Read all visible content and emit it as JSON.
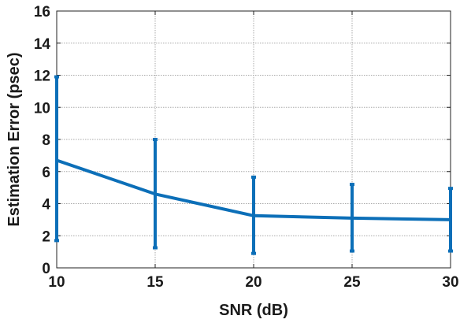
{
  "chart_data": {
    "type": "line",
    "title": "",
    "xlabel": "SNR (dB)",
    "ylabel": "Estimation Error (psec)",
    "xlim": [
      10,
      30
    ],
    "ylim": [
      0,
      16
    ],
    "x_ticks": [
      "10",
      "15",
      "20",
      "25",
      "30"
    ],
    "y_ticks": [
      "0",
      "2",
      "4",
      "6",
      "8",
      "10",
      "12",
      "14",
      "16"
    ],
    "grid": true,
    "error_bars": true,
    "series": [
      {
        "x": [
          10,
          15,
          20,
          25,
          30
        ],
        "y": [
          6.7,
          4.6,
          3.25,
          3.1,
          3.0
        ],
        "err_low": [
          1.7,
          1.25,
          0.9,
          1.05,
          1.05
        ],
        "err_high": [
          11.9,
          8.0,
          5.65,
          5.2,
          4.95
        ],
        "color": "#0c6fb8"
      }
    ]
  }
}
